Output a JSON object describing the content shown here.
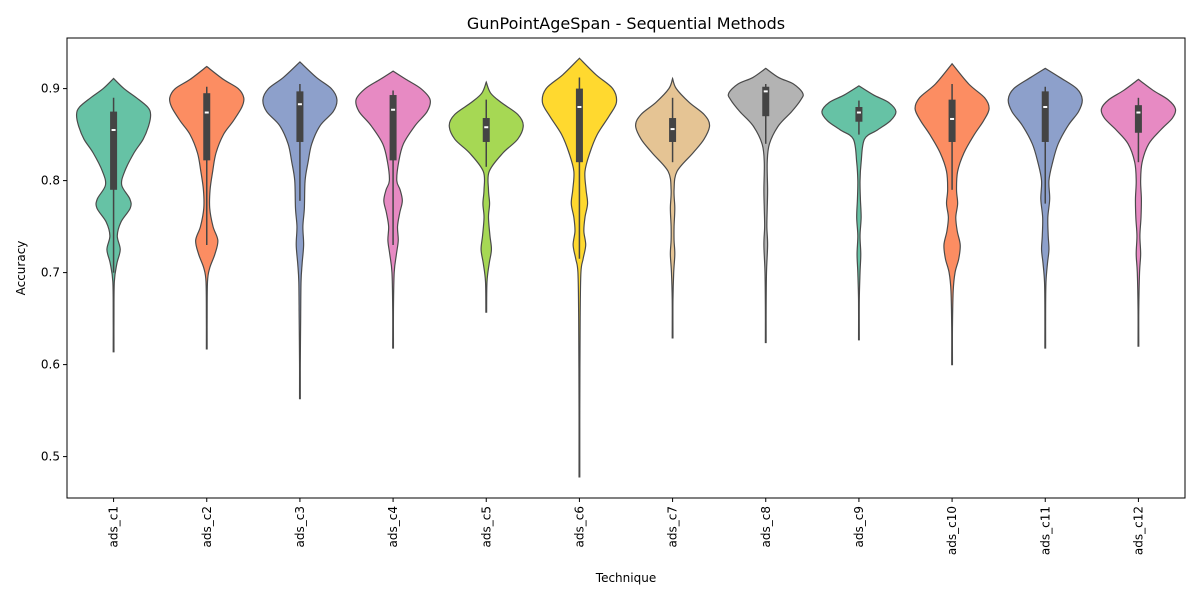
{
  "chart_data": {
    "type": "violin",
    "title": "GunPointAgeSpan - Sequential Methods",
    "xlabel": "Technique",
    "ylabel": "Accuracy",
    "ylim": [
      0.455,
      0.955
    ],
    "yticks": [
      0.5,
      0.6,
      0.7,
      0.8,
      0.9
    ],
    "yticklabels": [
      "0.5",
      "0.6",
      "0.7",
      "0.8",
      "0.9"
    ],
    "grid": false,
    "categories": [
      "ads_c1",
      "ads_c2",
      "ads_c3",
      "ads_c4",
      "ads_c5",
      "ads_c6",
      "ads_c7",
      "ads_c8",
      "ads_c9",
      "ads_c10",
      "ads_c11",
      "ads_c12"
    ],
    "colors": [
      "#66c2a5",
      "#fc8d62",
      "#8da0cb",
      "#e78ac3",
      "#a6d854",
      "#ffd92f",
      "#e5c494",
      "#b3b3b3",
      "#66c2a5",
      "#fc8d62",
      "#8da0cb",
      "#e78ac3"
    ],
    "distributions": [
      {
        "min": 0.614,
        "max": 0.911,
        "q1": 0.79,
        "median": 0.855,
        "q3": 0.875,
        "whisker_low": 0.7,
        "whisker_high": 0.89,
        "density": [
          [
            0.614,
            0.01
          ],
          [
            0.65,
            0.01
          ],
          [
            0.69,
            0.02
          ],
          [
            0.71,
            0.09
          ],
          [
            0.725,
            0.18
          ],
          [
            0.74,
            0.1
          ],
          [
            0.755,
            0.2
          ],
          [
            0.77,
            0.45
          ],
          [
            0.78,
            0.44
          ],
          [
            0.795,
            0.22
          ],
          [
            0.81,
            0.3
          ],
          [
            0.83,
            0.55
          ],
          [
            0.845,
            0.8
          ],
          [
            0.86,
            0.95
          ],
          [
            0.872,
            1.0
          ],
          [
            0.88,
            0.92
          ],
          [
            0.89,
            0.62
          ],
          [
            0.9,
            0.28
          ],
          [
            0.911,
            0.0
          ]
        ]
      },
      {
        "min": 0.617,
        "max": 0.924,
        "q1": 0.822,
        "median": 0.874,
        "q3": 0.895,
        "whisker_low": 0.73,
        "whisker_high": 0.902,
        "density": [
          [
            0.617,
            0.01
          ],
          [
            0.65,
            0.01
          ],
          [
            0.69,
            0.02
          ],
          [
            0.705,
            0.08
          ],
          [
            0.72,
            0.22
          ],
          [
            0.735,
            0.3
          ],
          [
            0.75,
            0.17
          ],
          [
            0.77,
            0.08
          ],
          [
            0.79,
            0.09
          ],
          [
            0.81,
            0.16
          ],
          [
            0.83,
            0.25
          ],
          [
            0.85,
            0.45
          ],
          [
            0.865,
            0.72
          ],
          [
            0.88,
            0.95
          ],
          [
            0.89,
            1.0
          ],
          [
            0.9,
            0.85
          ],
          [
            0.91,
            0.45
          ],
          [
            0.924,
            0.0
          ]
        ]
      },
      {
        "min": 0.563,
        "max": 0.929,
        "q1": 0.842,
        "median": 0.883,
        "q3": 0.897,
        "whisker_low": 0.778,
        "whisker_high": 0.905,
        "density": [
          [
            0.563,
            0.01
          ],
          [
            0.6,
            0.01
          ],
          [
            0.65,
            0.02
          ],
          [
            0.69,
            0.03
          ],
          [
            0.71,
            0.06
          ],
          [
            0.73,
            0.1
          ],
          [
            0.75,
            0.08
          ],
          [
            0.77,
            0.12
          ],
          [
            0.8,
            0.14
          ],
          [
            0.82,
            0.22
          ],
          [
            0.84,
            0.32
          ],
          [
            0.86,
            0.55
          ],
          [
            0.875,
            0.9
          ],
          [
            0.888,
            1.0
          ],
          [
            0.9,
            0.85
          ],
          [
            0.912,
            0.45
          ],
          [
            0.929,
            0.0
          ]
        ]
      },
      {
        "min": 0.618,
        "max": 0.919,
        "q1": 0.822,
        "median": 0.877,
        "q3": 0.893,
        "whisker_low": 0.73,
        "whisker_high": 0.898,
        "density": [
          [
            0.618,
            0.01
          ],
          [
            0.66,
            0.01
          ],
          [
            0.7,
            0.03
          ],
          [
            0.72,
            0.09
          ],
          [
            0.735,
            0.14
          ],
          [
            0.75,
            0.12
          ],
          [
            0.765,
            0.18
          ],
          [
            0.778,
            0.25
          ],
          [
            0.79,
            0.19
          ],
          [
            0.8,
            0.1
          ],
          [
            0.82,
            0.15
          ],
          [
            0.84,
            0.28
          ],
          [
            0.86,
            0.6
          ],
          [
            0.875,
            0.92
          ],
          [
            0.888,
            1.0
          ],
          [
            0.9,
            0.75
          ],
          [
            0.91,
            0.35
          ],
          [
            0.919,
            0.0
          ]
        ]
      },
      {
        "min": 0.657,
        "max": 0.907,
        "q1": 0.842,
        "median": 0.858,
        "q3": 0.868,
        "whisker_low": 0.815,
        "whisker_high": 0.888,
        "density": [
          [
            0.657,
            0.01
          ],
          [
            0.69,
            0.02
          ],
          [
            0.71,
            0.08
          ],
          [
            0.725,
            0.14
          ],
          [
            0.74,
            0.1
          ],
          [
            0.76,
            0.06
          ],
          [
            0.775,
            0.09
          ],
          [
            0.79,
            0.06
          ],
          [
            0.81,
            0.08
          ],
          [
            0.83,
            0.45
          ],
          [
            0.845,
            0.85
          ],
          [
            0.86,
            1.0
          ],
          [
            0.872,
            0.85
          ],
          [
            0.885,
            0.4
          ],
          [
            0.895,
            0.12
          ],
          [
            0.907,
            0.0
          ]
        ]
      },
      {
        "min": 0.478,
        "max": 0.933,
        "q1": 0.82,
        "median": 0.88,
        "q3": 0.9,
        "whisker_low": 0.715,
        "whisker_high": 0.912,
        "density": [
          [
            0.478,
            0.01
          ],
          [
            0.55,
            0.01
          ],
          [
            0.65,
            0.02
          ],
          [
            0.7,
            0.04
          ],
          [
            0.715,
            0.1
          ],
          [
            0.73,
            0.17
          ],
          [
            0.745,
            0.12
          ],
          [
            0.76,
            0.15
          ],
          [
            0.775,
            0.22
          ],
          [
            0.79,
            0.18
          ],
          [
            0.81,
            0.15
          ],
          [
            0.83,
            0.28
          ],
          [
            0.85,
            0.48
          ],
          [
            0.87,
            0.8
          ],
          [
            0.885,
            1.0
          ],
          [
            0.9,
            0.9
          ],
          [
            0.915,
            0.45
          ],
          [
            0.933,
            0.0
          ]
        ]
      },
      {
        "min": 0.629,
        "max": 0.911,
        "q1": 0.842,
        "median": 0.856,
        "q3": 0.868,
        "whisker_low": 0.82,
        "whisker_high": 0.89,
        "density": [
          [
            0.629,
            0.01
          ],
          [
            0.67,
            0.01
          ],
          [
            0.7,
            0.03
          ],
          [
            0.72,
            0.06
          ],
          [
            0.735,
            0.04
          ],
          [
            0.75,
            0.04
          ],
          [
            0.77,
            0.06
          ],
          [
            0.79,
            0.04
          ],
          [
            0.81,
            0.12
          ],
          [
            0.83,
            0.55
          ],
          [
            0.845,
            0.85
          ],
          [
            0.86,
            1.0
          ],
          [
            0.872,
            0.85
          ],
          [
            0.885,
            0.45
          ],
          [
            0.9,
            0.1
          ],
          [
            0.911,
            0.0
          ]
        ]
      },
      {
        "min": 0.624,
        "max": 0.922,
        "q1": 0.87,
        "median": 0.897,
        "q3": 0.902,
        "whisker_low": 0.84,
        "whisker_high": 0.905,
        "density": [
          [
            0.624,
            0.01
          ],
          [
            0.66,
            0.01
          ],
          [
            0.7,
            0.02
          ],
          [
            0.73,
            0.05
          ],
          [
            0.75,
            0.03
          ],
          [
            0.77,
            0.04
          ],
          [
            0.79,
            0.05
          ],
          [
            0.82,
            0.04
          ],
          [
            0.84,
            0.1
          ],
          [
            0.86,
            0.35
          ],
          [
            0.875,
            0.7
          ],
          [
            0.888,
            0.95
          ],
          [
            0.895,
            1.0
          ],
          [
            0.905,
            0.75
          ],
          [
            0.912,
            0.35
          ],
          [
            0.922,
            0.0
          ]
        ]
      },
      {
        "min": 0.627,
        "max": 0.903,
        "q1": 0.864,
        "median": 0.874,
        "q3": 0.88,
        "whisker_low": 0.85,
        "whisker_high": 0.887,
        "density": [
          [
            0.627,
            0.01
          ],
          [
            0.67,
            0.01
          ],
          [
            0.7,
            0.03
          ],
          [
            0.72,
            0.05
          ],
          [
            0.74,
            0.03
          ],
          [
            0.76,
            0.06
          ],
          [
            0.78,
            0.04
          ],
          [
            0.8,
            0.03
          ],
          [
            0.82,
            0.06
          ],
          [
            0.845,
            0.15
          ],
          [
            0.855,
            0.5
          ],
          [
            0.865,
            0.85
          ],
          [
            0.875,
            1.0
          ],
          [
            0.885,
            0.8
          ],
          [
            0.893,
            0.4
          ],
          [
            0.903,
            0.0
          ]
        ]
      },
      {
        "min": 0.6,
        "max": 0.927,
        "q1": 0.842,
        "median": 0.867,
        "q3": 0.888,
        "whisker_low": 0.79,
        "whisker_high": 0.905,
        "density": [
          [
            0.6,
            0.01
          ],
          [
            0.64,
            0.01
          ],
          [
            0.68,
            0.03
          ],
          [
            0.7,
            0.08
          ],
          [
            0.715,
            0.18
          ],
          [
            0.73,
            0.22
          ],
          [
            0.745,
            0.14
          ],
          [
            0.76,
            0.1
          ],
          [
            0.775,
            0.15
          ],
          [
            0.79,
            0.12
          ],
          [
            0.81,
            0.15
          ],
          [
            0.83,
            0.32
          ],
          [
            0.85,
            0.6
          ],
          [
            0.865,
            0.85
          ],
          [
            0.878,
            1.0
          ],
          [
            0.89,
            0.88
          ],
          [
            0.905,
            0.45
          ],
          [
            0.927,
            0.0
          ]
        ]
      },
      {
        "min": 0.618,
        "max": 0.922,
        "q1": 0.842,
        "median": 0.88,
        "q3": 0.897,
        "whisker_low": 0.775,
        "whisker_high": 0.902,
        "density": [
          [
            0.618,
            0.01
          ],
          [
            0.66,
            0.01
          ],
          [
            0.69,
            0.02
          ],
          [
            0.71,
            0.06
          ],
          [
            0.725,
            0.1
          ],
          [
            0.74,
            0.08
          ],
          [
            0.76,
            0.07
          ],
          [
            0.78,
            0.12
          ],
          [
            0.8,
            0.1
          ],
          [
            0.82,
            0.2
          ],
          [
            0.84,
            0.35
          ],
          [
            0.86,
            0.62
          ],
          [
            0.875,
            0.9
          ],
          [
            0.888,
            1.0
          ],
          [
            0.9,
            0.85
          ],
          [
            0.912,
            0.4
          ],
          [
            0.922,
            0.0
          ]
        ]
      },
      {
        "min": 0.62,
        "max": 0.91,
        "q1": 0.852,
        "median": 0.874,
        "q3": 0.882,
        "whisker_low": 0.82,
        "whisker_high": 0.89,
        "density": [
          [
            0.62,
            0.01
          ],
          [
            0.66,
            0.01
          ],
          [
            0.7,
            0.03
          ],
          [
            0.72,
            0.06
          ],
          [
            0.74,
            0.04
          ],
          [
            0.76,
            0.07
          ],
          [
            0.78,
            0.08
          ],
          [
            0.8,
            0.06
          ],
          [
            0.82,
            0.1
          ],
          [
            0.84,
            0.28
          ],
          [
            0.855,
            0.6
          ],
          [
            0.868,
            0.92
          ],
          [
            0.878,
            1.0
          ],
          [
            0.888,
            0.8
          ],
          [
            0.898,
            0.4
          ],
          [
            0.91,
            0.0
          ]
        ]
      }
    ]
  }
}
